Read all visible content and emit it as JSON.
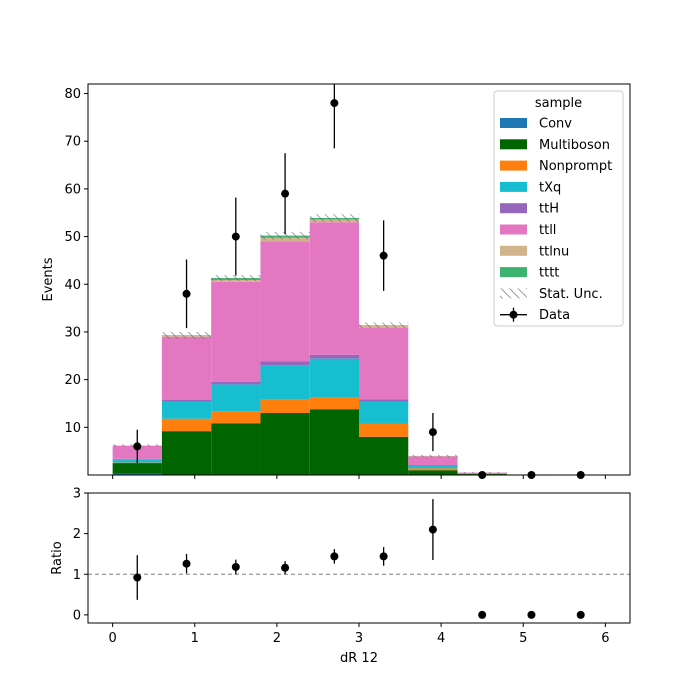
{
  "chart_data": [
    {
      "type": "bar",
      "stacked": true,
      "ylabel": "Events",
      "ylim": [
        0,
        82
      ],
      "yticks": [
        "10",
        "20",
        "30",
        "40",
        "50",
        "60",
        "70",
        "80"
      ],
      "bins": [
        [
          0,
          0.6
        ],
        [
          0.6,
          1.2
        ],
        [
          1.2,
          1.8
        ],
        [
          1.8,
          2.4
        ],
        [
          2.4,
          3.0
        ],
        [
          3.0,
          3.6
        ],
        [
          3.6,
          4.2
        ],
        [
          4.2,
          4.8
        ],
        [
          4.8,
          5.4
        ],
        [
          5.4,
          6.0
        ]
      ],
      "series": [
        {
          "name": "Conv",
          "color": "#1f77b4",
          "values": [
            0.3,
            0,
            0,
            0,
            0,
            0,
            0,
            0,
            0,
            0
          ]
        },
        {
          "name": "Multiboson",
          "color": "#006400",
          "values": [
            2.2,
            9.2,
            10.8,
            13.0,
            13.8,
            8.0,
            1.0,
            0.2,
            0,
            0
          ]
        },
        {
          "name": "Nonprompt",
          "color": "#ff7f0e",
          "values": [
            0.1,
            2.6,
            2.6,
            2.8,
            2.4,
            2.8,
            0.4,
            0.1,
            0.1,
            0
          ]
        },
        {
          "name": "tXq",
          "color": "#17becf",
          "values": [
            0.7,
            3.6,
            5.6,
            7.2,
            8.2,
            4.6,
            0.6,
            0,
            0,
            0
          ]
        },
        {
          "name": "ttH",
          "color": "#9467bd",
          "values": [
            0.1,
            0.4,
            0.5,
            0.8,
            0.8,
            0.5,
            0.1,
            0,
            0,
            0
          ]
        },
        {
          "name": "ttll",
          "color": "#e377c2",
          "values": [
            2.7,
            13.2,
            21.0,
            25.2,
            27.8,
            15.0,
            1.8,
            0.2,
            0,
            0
          ]
        },
        {
          "name": "ttlnu",
          "color": "#d2b48c",
          "values": [
            0.1,
            0.2,
            0.4,
            0.8,
            0.6,
            0.4,
            0.1,
            0,
            0,
            0
          ]
        },
        {
          "name": "tttt",
          "color": "#3cb371",
          "values": [
            0,
            0.1,
            0.4,
            0.4,
            0.3,
            0.1,
            0,
            0,
            0,
            0
          ]
        }
      ],
      "stat_unc": [
        0.5,
        1.4,
        1.2,
        1.6,
        1.6,
        1.2,
        0.5,
        0.3,
        0.1,
        0
      ],
      "data": {
        "name": "Data",
        "x": [
          0.3,
          0.9,
          1.5,
          2.1,
          2.7,
          3.3,
          3.9,
          4.5,
          5.1,
          5.7
        ],
        "y": [
          6,
          38,
          50,
          59,
          78,
          46,
          9,
          0,
          0,
          0
        ],
        "err": [
          3.5,
          7.2,
          8.2,
          8.5,
          9.5,
          7.4,
          4.0,
          0,
          0,
          0
        ]
      },
      "legend": {
        "title": "sample",
        "placement": "top-right",
        "stat_label": "Stat. Unc."
      }
    },
    {
      "type": "scatter",
      "ylabel": "Ratio",
      "xlabel": "dR 12",
      "xlim": [
        -0.3,
        6.3
      ],
      "ylim": [
        -0.2,
        3
      ],
      "xticks": [
        "0",
        "1",
        "2",
        "3",
        "4",
        "5",
        "6"
      ],
      "yticks": [
        "0",
        "1",
        "2",
        "3"
      ],
      "reference_line": 1,
      "points": {
        "x": [
          0.3,
          0.9,
          1.5,
          2.1,
          2.7,
          3.3,
          3.9,
          4.5,
          5.1,
          5.7
        ],
        "y": [
          0.92,
          1.26,
          1.18,
          1.16,
          1.44,
          1.44,
          2.1,
          0,
          0,
          0
        ],
        "err": [
          0.55,
          0.24,
          0.18,
          0.16,
          0.18,
          0.23,
          0.75,
          0,
          0,
          0
        ]
      }
    }
  ]
}
